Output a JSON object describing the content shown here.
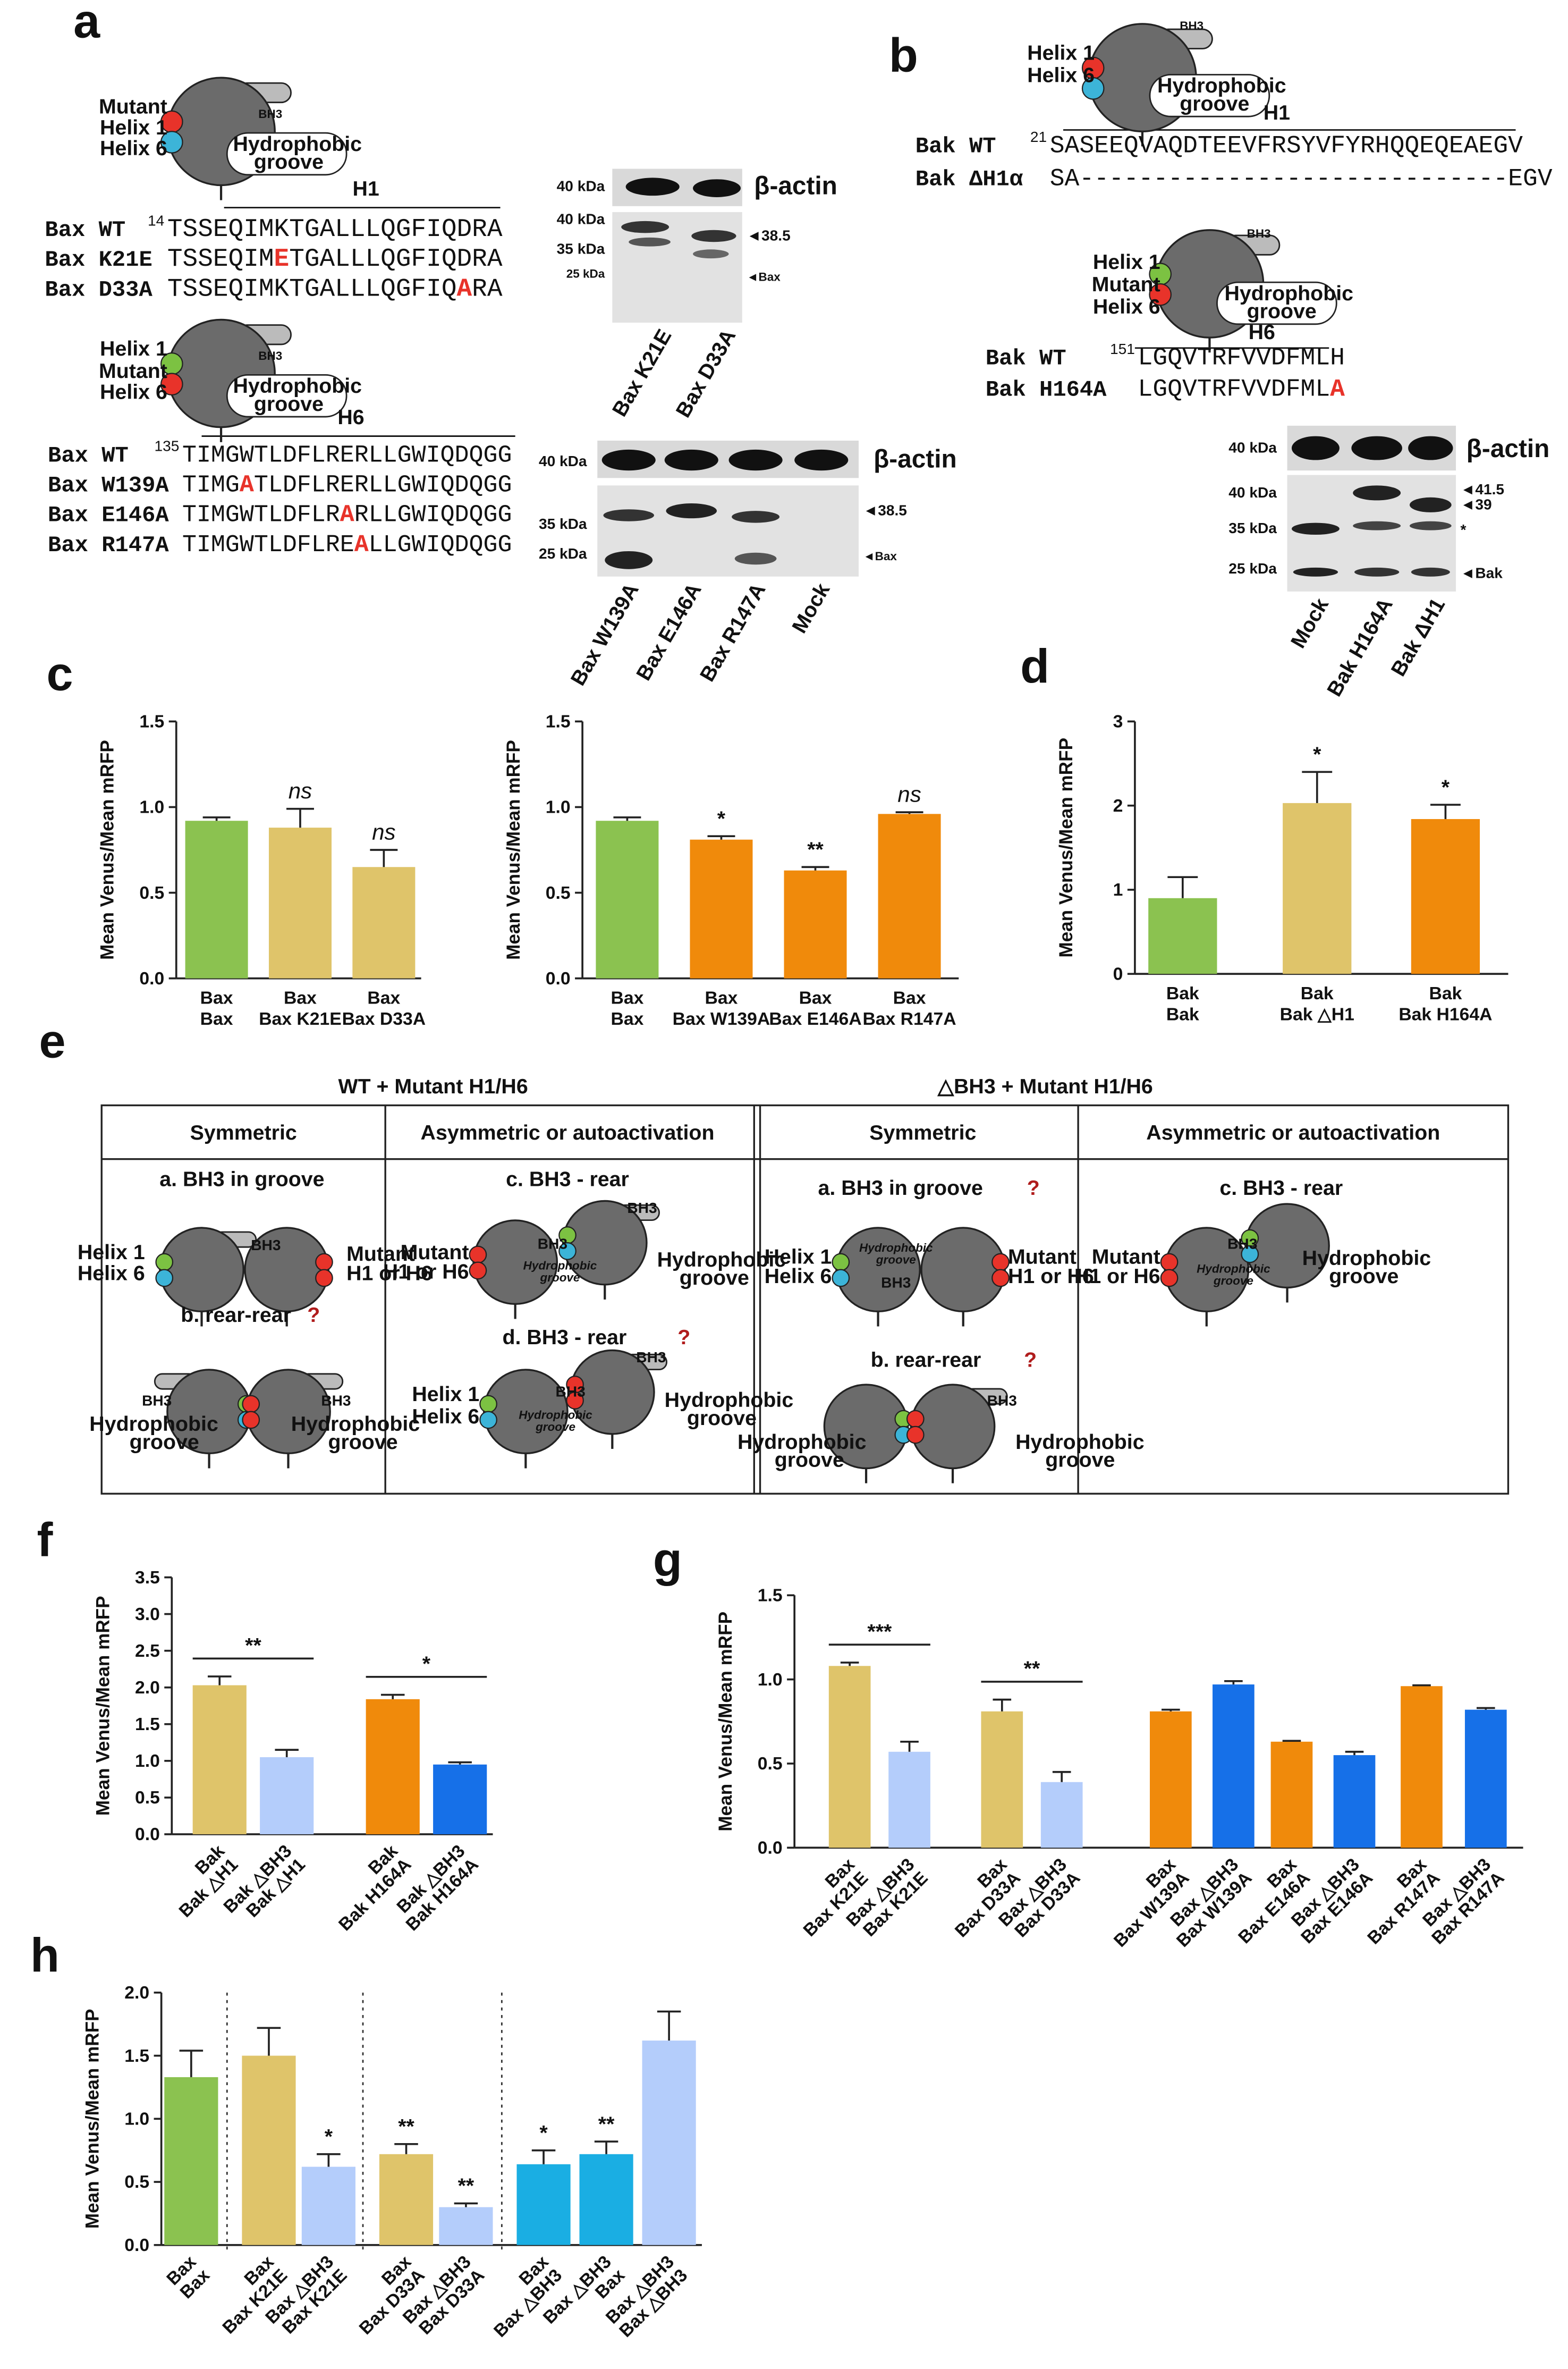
{
  "panel_labels": [
    "a",
    "b",
    "c",
    "d",
    "e",
    "f",
    "g",
    "h"
  ],
  "a": {
    "diagram_top": {
      "mutant": "Mutant",
      "helix1": "Helix 1",
      "helix6": "Helix 6",
      "bh3": "BH3",
      "groove": [
        "Hydrophobic",
        "groove"
      ]
    },
    "h1": {
      "label": "H1",
      "rows": [
        {
          "name": "Bax WT",
          "start": 14,
          "seq": [
            "TSSEQIMKTGALLLQGFIQDRA"
          ]
        },
        {
          "name": "Bax K21E",
          "seq": [
            "TSSEQIM",
            "E",
            "TGALLLQGFIQDRA"
          ]
        },
        {
          "name": "Bax D33A",
          "seq": [
            "TSSEQIMKTGALLLQGFIQ",
            "A",
            "RA"
          ]
        }
      ]
    },
    "diagram_mid": {
      "helix1": "Helix 1",
      "mutant": "Mutant",
      "helix6": "Helix 6",
      "bh3": "BH3",
      "groove": [
        "Hydrophobic",
        "groove"
      ]
    },
    "h6": {
      "label": "H6",
      "rows": [
        {
          "name": "Bax WT",
          "start": 135,
          "seq": [
            "TIMGWTLDFLRERLLGWIQDQGG"
          ]
        },
        {
          "name": "Bax W139A",
          "seq": [
            "TIMG",
            "A",
            "TLDFLRERLLGWIQDQGG"
          ]
        },
        {
          "name": "Bax E146A",
          "seq": [
            "TIMGWTLDFLR",
            "A",
            "RLLGWIQDQGG"
          ]
        },
        {
          "name": "Bax R147A",
          "seq": [
            "TIMGWTLDFLRE",
            "A",
            "LLGWIQDQGG"
          ]
        }
      ]
    },
    "blot1": {
      "actin": "β-actin",
      "markers": [
        "40 kDa",
        "40 kDa",
        "35 kDa",
        "25 kDa"
      ],
      "arrows": [
        "◄38.5",
        "◄Bax"
      ],
      "lanes": [
        "Bax K21E",
        "Bax D33A"
      ]
    },
    "blot2": {
      "actin": "β-actin",
      "markers": [
        "40 kDa",
        "35 kDa",
        "25 kDa"
      ],
      "arrows": [
        "◄38.5",
        "◄Bax"
      ],
      "lanes": [
        "Bax W139A",
        "Bax E146A",
        "Bax R147A",
        "Mock"
      ]
    }
  },
  "b": {
    "diagram_top": {
      "helix1": "Helix 1",
      "helix6": "Helix 6",
      "bh3": "BH3",
      "groove": [
        "Hydrophobic",
        "groove"
      ]
    },
    "h1": {
      "label": "H1",
      "rows": [
        {
          "name": "Bak WT",
          "start": 21,
          "seq": [
            "SASEEQVAQDTEEVFRSYVFYRHQQEQEAEGV"
          ]
        },
        {
          "name": "Bak ΔH1α",
          "seq": [
            "SA-----------------------------EGV"
          ]
        }
      ]
    },
    "diagram_mid": {
      "helix1": "Helix 1",
      "mutant": "Mutant",
      "helix6": "Helix 6",
      "bh3": "BH3",
      "groove": [
        "Hydrophobic",
        "groove"
      ]
    },
    "h6": {
      "label": "H6",
      "rows": [
        {
          "name": "Bak WT",
          "start": 151,
          "seq": [
            "LGQVTRFVVDFMLH"
          ]
        },
        {
          "name": "Bak H164A",
          "seq": [
            "LGQVTRFVVDFML",
            "A"
          ]
        }
      ]
    },
    "blot": {
      "actin": "β-actin",
      "markers": [
        "40 kDa",
        "40 kDa",
        "35 kDa",
        "25 kDa"
      ],
      "arrows": [
        "◄41.5",
        "◄39",
        "*",
        "◄Bak"
      ],
      "lanes": [
        "Mock",
        "Bak H164A",
        "Bak ΔH1"
      ]
    }
  },
  "e": {
    "groups": [
      "WT + Mutant H1/H6",
      "△BH3 + Mutant H1/H6"
    ],
    "columns": [
      "Symmetric",
      "Asymmetric or autoactivation",
      "Symmetric",
      "Asymmetric or autoactivation"
    ],
    "cells": [
      {
        "title": "a. BH3 in groove",
        "labels": [
          "Helix 1",
          "Helix 6",
          "BH3",
          "Mutant",
          "H1 or H6"
        ]
      },
      {
        "title": "b. rear-rear",
        "query": "?",
        "labels": [
          "BH3",
          "Hydrophobic",
          "groove",
          "BH3",
          "Hydrophobic",
          "groove"
        ]
      },
      {
        "title": "c. BH3 - rear",
        "labels": [
          "Mutant",
          "H1 or H6",
          "BH3",
          "Hydrophobic",
          "groove",
          "BH3",
          "Hydrophobic",
          "groove"
        ]
      },
      {
        "title": "d. BH3 - rear",
        "query": "?",
        "labels": [
          "Helix 1",
          "Helix 6",
          "BH3",
          "Hydrophobic",
          "groove",
          "BH3",
          "Hydrophobic",
          "groove"
        ]
      },
      {
        "title": "a. BH3 in groove",
        "query": "?",
        "labels": [
          "Helix 1",
          "Helix 6",
          "Hydrophobic",
          "groove",
          "BH3",
          "Mutant",
          "H1 or H6"
        ]
      },
      {
        "title": "b. rear-rear",
        "query": "?",
        "labels": [
          "Hydrophobic",
          "groove",
          "BH3",
          "Hydrophobic",
          "groove"
        ]
      },
      {
        "title": "c. BH3 - rear",
        "labels": [
          "Mutant",
          "H1 or H6",
          "BH3",
          "Hydrophobic",
          "groove",
          "Hydrophobic",
          "groove"
        ]
      }
    ]
  },
  "chart_data": [
    {
      "type": "bar",
      "ylabel": "Mean Venus/Mean mRFP",
      "categories": [
        [
          "Bax",
          "Bax"
        ],
        [
          "Bax",
          "Bax K21E"
        ],
        [
          "Bax",
          "Bax D33A"
        ]
      ],
      "values": [
        0.92,
        0.88,
        0.65
      ],
      "errors": [
        0.02,
        0.11,
        0.1
      ],
      "colors": [
        "#8bc250",
        "#dfc46a",
        "#dfc46a"
      ],
      "annotations": [
        null,
        "ns",
        "ns"
      ],
      "ylim": [
        0,
        1.5
      ],
      "yticks": [
        {
          "value": 0,
          "label": "0.0"
        },
        0.5,
        {
          "value": 1,
          "label": "1.0"
        },
        1.5
      ]
    },
    {
      "type": "bar",
      "ylabel": "Mean Venus/Mean mRFP",
      "categories": [
        [
          "Bax",
          "Bax"
        ],
        [
          "Bax",
          "Bax W139A"
        ],
        [
          "Bax",
          "Bax E146A"
        ],
        [
          "Bax",
          "Bax R147A"
        ]
      ],
      "values": [
        0.92,
        0.81,
        0.63,
        0.96
      ],
      "errors": [
        0.02,
        0.02,
        0.02,
        0.01
      ],
      "colors": [
        "#8bc250",
        "#f08a0b",
        "#f08a0b",
        "#f08a0b"
      ],
      "annotations": [
        null,
        "*",
        "**",
        "ns"
      ],
      "ylim": [
        0,
        1.5
      ],
      "yticks": [
        {
          "value": 0,
          "label": "0.0"
        },
        0.5,
        {
          "value": 1,
          "label": "1.0"
        },
        1.5
      ]
    },
    {
      "type": "bar",
      "ylabel": "Mean Venus/Mean mRFP",
      "categories": [
        [
          "Bak",
          "Bak"
        ],
        [
          "Bak",
          "Bak △H1"
        ],
        [
          "Bak",
          "Bak H164A"
        ]
      ],
      "values": [
        0.9,
        2.03,
        1.84
      ],
      "errors": [
        0.25,
        0.37,
        0.17
      ],
      "colors": [
        "#8bc250",
        "#dfc46a",
        "#f08a0b"
      ],
      "annotations": [
        null,
        "*",
        "*"
      ],
      "ylim": [
        0,
        3
      ],
      "yticks": [
        0,
        1,
        2,
        3
      ]
    },
    {
      "type": "bar",
      "ylabel": "Mean Venus/Mean mRFP",
      "brackets": true,
      "categories": [
        [
          "Bak",
          "Bak △H1"
        ],
        [
          "Bak △BH3",
          "Bak △H1"
        ],
        [
          "Bak",
          "Bak H164A"
        ],
        [
          "Bak △BH3",
          "Bak H164A"
        ]
      ],
      "values": [
        2.03,
        1.05,
        1.84,
        0.95
      ],
      "errors": [
        0.12,
        0.1,
        0.06,
        0.03
      ],
      "colors": [
        "#dfc46a",
        "#b4cdfb",
        "#f08a0b",
        "#1670e8"
      ],
      "annotations": [
        "**",
        null,
        "*",
        null
      ],
      "ylim": [
        0,
        3.5
      ],
      "yticks": [
        {
          "value": 0,
          "label": "0.0"
        },
        0.5,
        {
          "value": 1,
          "label": "1.0"
        },
        1.5,
        {
          "value": 2,
          "label": "2.0"
        },
        2.5,
        {
          "value": 3,
          "label": "3.0"
        },
        3.5
      ]
    },
    {
      "type": "bar",
      "ylabel": "Mean Venus/Mean mRFP",
      "brackets": true,
      "categories": [
        [
          "Bax",
          "Bax K21E"
        ],
        [
          "Bax △BH3",
          "Bax K21E"
        ],
        [
          "Bax",
          "Bax D33A"
        ],
        [
          "Bax △BH3",
          "Bax D33A"
        ],
        [
          "Bax",
          "Bax W139A"
        ],
        [
          "Bax △BH3",
          "Bax W139A"
        ],
        [
          "Bax",
          "Bax E146A"
        ],
        [
          "Bax △BH3",
          "Bax E146A"
        ],
        [
          "Bax",
          "Bax R147A"
        ],
        [
          "Bax △BH3",
          "Bax R147A"
        ]
      ],
      "values": [
        1.08,
        0.57,
        0.81,
        0.39,
        0.81,
        0.97,
        0.63,
        0.55,
        0.96,
        0.82
      ],
      "errors": [
        0.02,
        0.06,
        0.07,
        0.06,
        0.01,
        0.02,
        0.005,
        0.02,
        0.005,
        0.01
      ],
      "colors": [
        "#dfc46a",
        "#b4cdfb",
        "#dfc46a",
        "#b4cdfb",
        "#f08a0b",
        "#1670e8",
        "#f08a0b",
        "#1670e8",
        "#f08a0b",
        "#1670e8"
      ],
      "annotations": [
        "***",
        null,
        "**",
        null,
        null,
        null,
        null,
        null,
        null,
        null
      ],
      "ylim": [
        0,
        1.5
      ],
      "yticks": [
        {
          "value": 0,
          "label": "0.0"
        },
        0.5,
        {
          "value": 1,
          "label": "1.0"
        },
        1.5
      ]
    },
    {
      "type": "bar",
      "ylabel": "Mean Venus/Mean mRFP",
      "categories": [
        [
          "Bax",
          "Bax"
        ],
        [
          "Bax",
          "Bax K21E"
        ],
        [
          "Bax △BH3",
          "Bax K21E"
        ],
        [
          "Bax",
          "Bax D33A"
        ],
        [
          "Bax △BH3",
          "Bax D33A"
        ],
        [
          "Bax",
          "Bax △BH3"
        ],
        [
          "Bax △BH3",
          "Bax"
        ],
        [
          "Bax △BH3",
          "Bax △BH3"
        ]
      ],
      "values": [
        1.33,
        1.5,
        0.62,
        0.72,
        0.3,
        0.64,
        0.72,
        1.62
      ],
      "errors": [
        0.21,
        0.22,
        0.1,
        0.08,
        0.03,
        0.11,
        0.1,
        0.23
      ],
      "colors": [
        "#8bc250",
        "#dfc46a",
        "#b4cdfb",
        "#dfc46a",
        "#b4cdfb",
        "#1aaee3",
        "#1aaee3",
        "#b4cdfb"
      ],
      "annotations": [
        null,
        null,
        "*",
        "**",
        "**",
        "*",
        "**",
        null
      ],
      "ylim": [
        0,
        2
      ],
      "yticks": [
        {
          "value": 0,
          "label": "0.0"
        },
        0.5,
        {
          "value": 1,
          "label": "1.0"
        },
        1.5,
        {
          "value": 2,
          "label": "2.0"
        }
      ]
    }
  ]
}
